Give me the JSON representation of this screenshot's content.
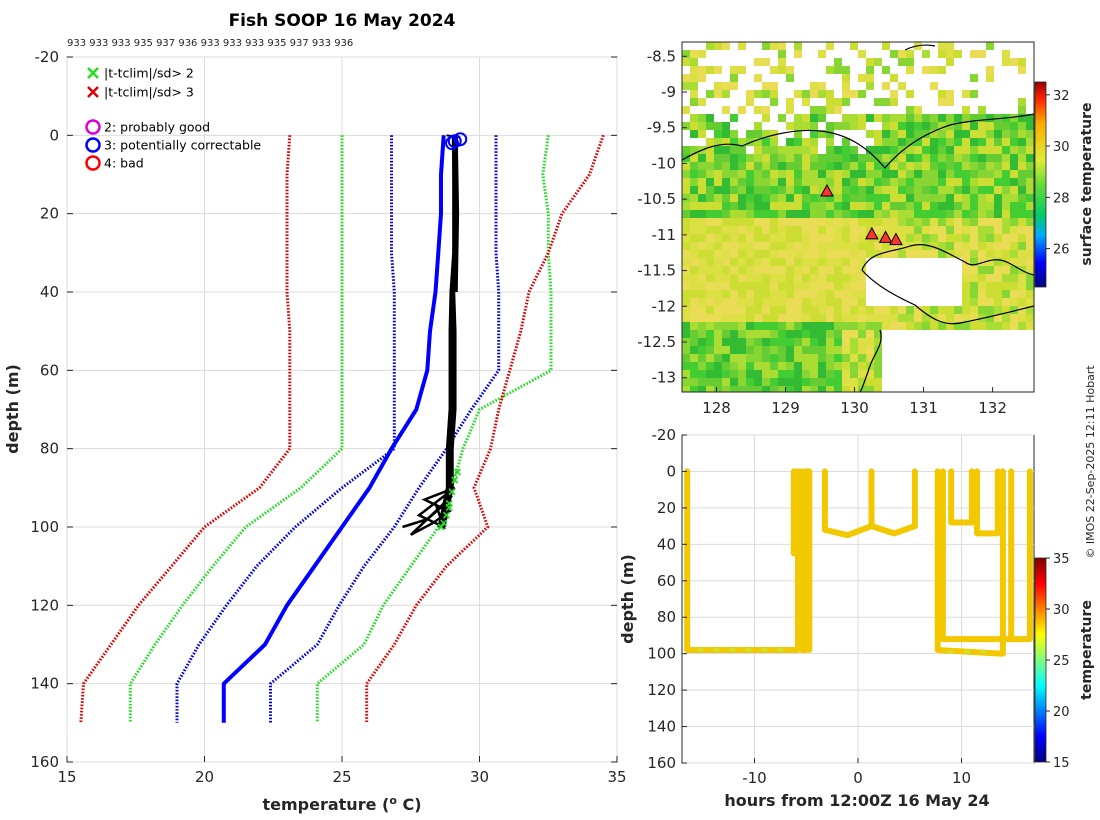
{
  "chart_data": [
    {
      "type": "line",
      "title": "Fish SOOP 16 May 2024",
      "subtitle": "933 933 933 935 937 936 933 933 933 935 937 933 936",
      "xlabel": "temperature (",
      "xlabel_sup": "o",
      "xlabel_end": " C)",
      "ylabel": "depth (m)",
      "xlim": [
        15,
        35
      ],
      "ylim": [
        -20,
        160
      ],
      "x_ticks": [
        "15",
        "20",
        "25",
        "30",
        "35"
      ],
      "y_ticks": [
        "-20",
        "0",
        "20",
        "40",
        "60",
        "80",
        "100",
        "120",
        "140",
        "160"
      ],
      "legend": [
        {
          "marker": "x",
          "color": "#22dd22",
          "label": "|t-tclim|/sd> 2"
        },
        {
          "marker": "x",
          "color": "#dd0000",
          "label": "|t-tclim|/sd> 3"
        },
        {
          "marker": "o",
          "color": "#dd00dd",
          "label": "2: probably good"
        },
        {
          "marker": "o",
          "color": "#0000ff",
          "label": "3: potentially correctable"
        },
        {
          "marker": "o",
          "color": "#ff0000",
          "label": "4: bad"
        }
      ],
      "depth": [
        0,
        10,
        20,
        30,
        40,
        50,
        60,
        70,
        80,
        90,
        100,
        110,
        120,
        130,
        140,
        150
      ],
      "series": [
        {
          "name": "clim -3sd",
          "color": "#dd0000",
          "style": "dotted",
          "temperature": [
            23.1,
            23.0,
            23.0,
            23.0,
            23.0,
            23.1,
            23.1,
            23.1,
            23.1,
            22.0,
            20.0,
            18.8,
            17.6,
            16.6,
            15.6,
            15.5
          ]
        },
        {
          "name": "clim -2sd",
          "color": "#22dd22",
          "style": "dotted",
          "temperature": [
            25.0,
            25.0,
            25.0,
            25.0,
            25.0,
            25.0,
            25.0,
            25.0,
            25.0,
            23.5,
            21.5,
            20.3,
            19.2,
            18.2,
            17.3,
            17.3
          ]
        },
        {
          "name": "clim -1sd",
          "color": "#0000dd",
          "style": "dotted",
          "temperature": [
            26.8,
            26.8,
            26.8,
            26.8,
            26.9,
            26.9,
            26.9,
            26.9,
            26.9,
            25.0,
            23.3,
            21.9,
            20.8,
            19.8,
            19.0,
            19.0
          ]
        },
        {
          "name": "clim mean",
          "color": "#0000ff",
          "style": "solid",
          "temperature": [
            28.7,
            28.6,
            28.6,
            28.5,
            28.4,
            28.2,
            28.1,
            27.7,
            26.8,
            26.0,
            25.0,
            24.0,
            23.0,
            22.2,
            20.7,
            20.7
          ]
        },
        {
          "name": "clim +1sd",
          "color": "#0000dd",
          "style": "dotted",
          "temperature": [
            30.6,
            30.6,
            30.6,
            30.6,
            30.7,
            30.7,
            30.7,
            29.7,
            28.8,
            27.8,
            26.9,
            25.8,
            24.9,
            24.1,
            22.4,
            22.4
          ]
        },
        {
          "name": "clim +2sd",
          "color": "#22dd22",
          "style": "dotted",
          "temperature": [
            32.5,
            32.3,
            32.5,
            32.5,
            32.6,
            32.6,
            32.6,
            30.0,
            29.4,
            29.0,
            28.5,
            27.5,
            26.5,
            25.8,
            24.1,
            24.1
          ]
        },
        {
          "name": "clim +3sd",
          "color": "#dd0000",
          "style": "dotted",
          "temperature": [
            34.5,
            34.0,
            33.0,
            32.5,
            31.8,
            31.5,
            31.1,
            30.7,
            30.4,
            29.8,
            30.3,
            28.8,
            27.7,
            26.9,
            25.9,
            25.9
          ]
        },
        {
          "name": "observed",
          "color": "#000000",
          "style": "solid",
          "temperature": [
            29.1,
            29.1,
            29.1,
            29.1,
            29.0,
            29.0,
            29.0,
            29.0,
            28.9,
            28.9,
            28.6,
            null,
            null,
            null,
            null,
            null
          ]
        }
      ]
    },
    {
      "type": "heatmap",
      "title": "",
      "colorbar_label": "surface temperature",
      "colorbar_ticks": [
        "26",
        "28",
        "30",
        "32"
      ],
      "colorbar_range": [
        24.5,
        32.5
      ],
      "xlim": [
        127.5,
        132.6
      ],
      "ylim": [
        -13.2,
        -8.3
      ],
      "x_ticks": [
        "128",
        "129",
        "130",
        "131",
        "132"
      ],
      "y_ticks": [
        "-8.5",
        "-9",
        "-9.5",
        "-10",
        "-10.5",
        "-11",
        "-11.5",
        "-12",
        "-12.5",
        "-13"
      ],
      "profiles": [
        {
          "lon": 129.6,
          "lat": -10.4
        },
        {
          "lon": 130.25,
          "lat": -11.0
        },
        {
          "lon": 130.45,
          "lat": -11.05
        },
        {
          "lon": 130.6,
          "lat": -11.08
        }
      ]
    },
    {
      "type": "scatter",
      "xlabel": "hours from 12:00Z 16 May 24",
      "ylabel": "depth (m)",
      "colorbar_label": "temperature",
      "colorbar_ticks": [
        "15",
        "20",
        "25",
        "30",
        "35"
      ],
      "colorbar_range": [
        15,
        35
      ],
      "xlim": [
        -17,
        17
      ],
      "ylim": [
        -20,
        160
      ],
      "x_ticks": [
        "-10",
        "0",
        "10"
      ],
      "y_ticks": [
        "-20",
        "0",
        "20",
        "40",
        "60",
        "80",
        "100",
        "120",
        "140",
        "160"
      ],
      "tracks": [
        {
          "hours": [
            -16.5,
            -16.5,
            -5.8,
            -5.8
          ],
          "depth": [
            0,
            98,
            98,
            0
          ]
        },
        {
          "hours": [
            -6.2,
            -6.2,
            -5.9,
            -5.9
          ],
          "depth": [
            0,
            45,
            45,
            0
          ]
        },
        {
          "hours": [
            -5.4,
            -5.4,
            -5.0,
            -5.0,
            -4.7,
            -4.7
          ],
          "depth": [
            0,
            98,
            98,
            0,
            0,
            98
          ]
        },
        {
          "hours": [
            -3.2,
            -3.2,
            -1.0,
            1.3,
            3.5,
            5.5,
            5.5
          ],
          "depth": [
            0,
            32,
            35,
            30,
            34,
            30,
            0
          ]
        },
        {
          "hours": [
            1.3,
            1.3
          ],
          "depth": [
            0,
            30
          ]
        },
        {
          "hours": [
            7.7,
            7.7,
            14.0,
            14.0
          ],
          "depth": [
            0,
            98,
            100,
            0
          ]
        },
        {
          "hours": [
            8.2,
            8.2,
            16.6,
            16.6
          ],
          "depth": [
            0,
            92,
            92,
            0
          ]
        },
        {
          "hours": [
            9.0,
            9.0,
            11.0,
            11.0
          ],
          "depth": [
            0,
            28,
            28,
            0
          ]
        },
        {
          "hours": [
            11.5,
            11.5,
            13.5,
            13.5
          ],
          "depth": [
            0,
            34,
            34,
            0
          ]
        },
        {
          "hours": [
            14.8,
            14.8
          ],
          "depth": [
            0,
            92
          ]
        }
      ]
    }
  ],
  "watermark": "© IMOS 22-Sep-2025 12:11 Hobart"
}
